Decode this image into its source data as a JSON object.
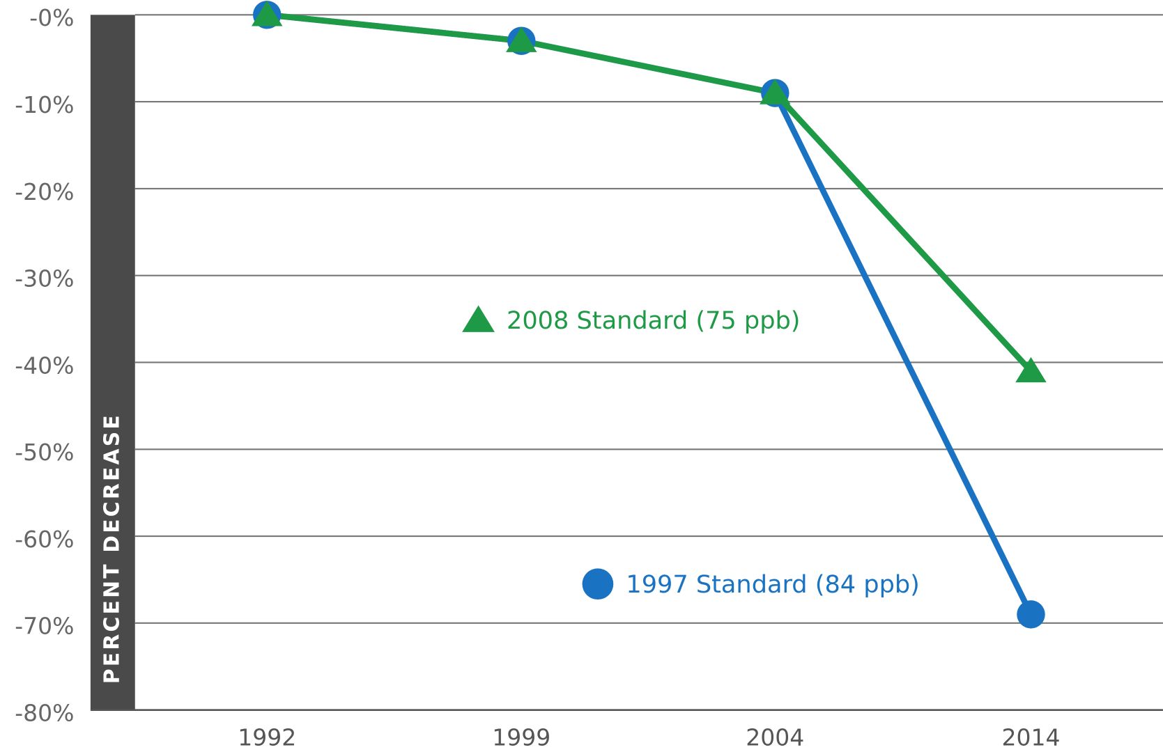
{
  "chart_data": {
    "type": "line",
    "y_label": "PERCENT DECREASE",
    "categories": [
      "1992",
      "1999",
      "2004",
      "2014"
    ],
    "series": [
      {
        "name": "1997 Standard (84 ppb)",
        "color": "#1a73c2",
        "marker": "circle",
        "values": [
          0,
          -3,
          -9,
          -69
        ]
      },
      {
        "name": "2008 Standard (75 ppb)",
        "color": "#1e9a47",
        "marker": "triangle",
        "values": [
          0,
          -3,
          -9,
          -41
        ]
      }
    ],
    "ylim": [
      -80,
      0
    ],
    "yticks": [
      {
        "value": 0,
        "label": "-0%"
      },
      {
        "value": -10,
        "label": "-10%"
      },
      {
        "value": -20,
        "label": "-20%"
      },
      {
        "value": -30,
        "label": "-30%"
      },
      {
        "value": -40,
        "label": "-40%"
      },
      {
        "value": -50,
        "label": "-50%"
      },
      {
        "value": -60,
        "label": "-60%"
      },
      {
        "value": -70,
        "label": "-70%"
      },
      {
        "value": -80,
        "label": "-80%"
      }
    ],
    "grid": true
  }
}
